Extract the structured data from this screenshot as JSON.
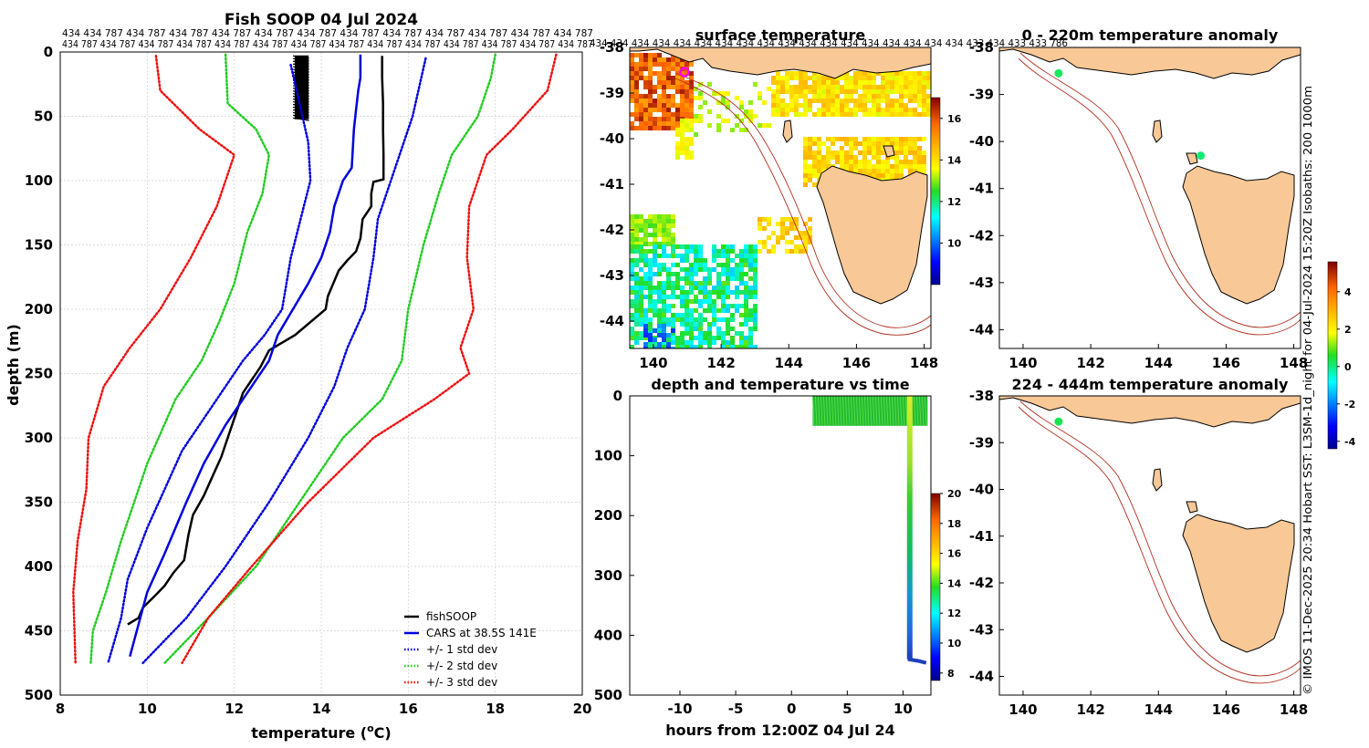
{
  "colors": {
    "fish": "#000000",
    "cars": "#0000dd",
    "std1": "#0000dd",
    "std2": "#22cc22",
    "std3": "#ee1111",
    "land": "#f8c897",
    "isobath": "#b03020",
    "grid": "#d0d0d0"
  },
  "footer_text": "© IMOS 11-Dec-2025 20:34 Hobart SST: L3SM-1d_night for 04-Jul-2024 15:20Z Isobaths: 200  1000m",
  "chart_data": [
    {
      "id": "profile",
      "type": "line",
      "title": "Fish SOOP 04 Jul 2024",
      "xlabel": "temperature (oC)",
      "xlabel_main": "temperature (",
      "xlabel_sup": "o",
      "xlabel_end": "C)",
      "ylabel": "depth (m)",
      "xlim": [
        8,
        20
      ],
      "ylim": [
        500,
        0
      ],
      "xticks": [
        "8",
        "10",
        "12",
        "14",
        "16",
        "18",
        "20"
      ],
      "yticks": [
        "0",
        "50",
        "100",
        "150",
        "200",
        "250",
        "300",
        "350",
        "400",
        "450",
        "500"
      ],
      "grid": true,
      "legend_position": "bottom-right",
      "top_labels": {
        "row1": "434 434 787 434 787 434 787 434 787 434 787 434 787 434 787 434 787 434 787 434 787 434 787 434 787",
        "row2": "434 787 434 787 434 787 434 787 434 787 434 787 434 787 434 787 434 787 434 787 434 787 434 787 434 787 434 787"
      },
      "series": [
        {
          "name": "fishSOOP",
          "style": "solid",
          "color": "#000000",
          "points": [
            [
              15.4,
              3
            ],
            [
              15.4,
              20
            ],
            [
              15.42,
              40
            ],
            [
              15.42,
              60
            ],
            [
              15.43,
              80
            ],
            [
              15.43,
              99
            ],
            [
              15.2,
              101
            ],
            [
              15.15,
              110
            ],
            [
              15.15,
              120
            ],
            [
              14.95,
              130
            ],
            [
              14.9,
              145
            ],
            [
              14.8,
              155
            ],
            [
              14.6,
              162
            ],
            [
              14.4,
              170
            ],
            [
              14.15,
              190
            ],
            [
              14.1,
              200
            ],
            [
              13.4,
              220
            ],
            [
              12.8,
              232
            ],
            [
              12.6,
              245
            ],
            [
              12.4,
              255
            ],
            [
              12.2,
              265
            ],
            [
              12.05,
              280
            ],
            [
              11.85,
              300
            ],
            [
              11.7,
              315
            ],
            [
              11.5,
              330
            ],
            [
              11.3,
              345
            ],
            [
              11.05,
              360
            ],
            [
              10.95,
              375
            ],
            [
              10.85,
              395
            ],
            [
              10.6,
              405
            ],
            [
              10.4,
              415
            ],
            [
              10.2,
              422
            ],
            [
              9.9,
              432
            ],
            [
              9.8,
              440
            ],
            [
              9.55,
              445
            ]
          ]
        },
        {
          "name": "surface_dive",
          "style": "blob",
          "color": "#000000",
          "points": [
            [
              13.4,
              3
            ],
            [
              13.7,
              3
            ],
            [
              13.7,
              52
            ],
            [
              13.4,
              52
            ]
          ]
        },
        {
          "name": "CARS at 38.5S 141E",
          "style": "solid",
          "color": "#0000dd",
          "points": [
            [
              14.9,
              2
            ],
            [
              14.9,
              20
            ],
            [
              14.85,
              30
            ],
            [
              14.8,
              45
            ],
            [
              14.75,
              60
            ],
            [
              14.7,
              90
            ],
            [
              14.5,
              100
            ],
            [
              14.3,
              120
            ],
            [
              14.2,
              140
            ],
            [
              14.0,
              160
            ],
            [
              13.7,
              180
            ],
            [
              13.35,
              200
            ],
            [
              13.0,
              220
            ],
            [
              12.8,
              240
            ],
            [
              12.5,
              255
            ],
            [
              12.2,
              270
            ],
            [
              11.8,
              290
            ],
            [
              11.3,
              320
            ],
            [
              10.9,
              350
            ],
            [
              10.4,
              390
            ],
            [
              10.0,
              420
            ],
            [
              9.6,
              470
            ]
          ]
        },
        {
          "name": "+/- 1 std dev",
          "style": "dotted",
          "color": "#0000dd",
          "points": [
            [
              13.3,
              10
            ],
            [
              13.5,
              40
            ],
            [
              13.7,
              70
            ],
            [
              13.75,
              100
            ],
            [
              13.6,
              120
            ],
            [
              13.3,
              160
            ],
            [
              13.1,
              200
            ],
            [
              12.7,
              220
            ],
            [
              12.2,
              240
            ],
            [
              11.6,
              270
            ],
            [
              10.8,
              310
            ],
            [
              10.0,
              370
            ],
            [
              9.55,
              410
            ],
            [
              9.4,
              440
            ],
            [
              9.1,
              475
            ]
          ]
        },
        {
          "name": "+/- 1 std dev upper",
          "style": "dotted",
          "color": "#0000dd",
          "points": [
            [
              16.4,
              5
            ],
            [
              16.3,
              20
            ],
            [
              16.1,
              50
            ],
            [
              15.8,
              80
            ],
            [
              15.6,
              100
            ],
            [
              15.3,
              130
            ],
            [
              15.2,
              160
            ],
            [
              15.0,
              200
            ],
            [
              14.6,
              230
            ],
            [
              14.3,
              260
            ],
            [
              13.7,
              300
            ],
            [
              12.8,
              350
            ],
            [
              11.8,
              400
            ],
            [
              10.9,
              440
            ],
            [
              9.9,
              475
            ]
          ]
        },
        {
          "name": "+/- 2 std dev",
          "style": "dotted",
          "color": "#22cc22",
          "points": [
            [
              11.8,
              2
            ],
            [
              11.85,
              40
            ],
            [
              12.5,
              60
            ],
            [
              12.8,
              80
            ],
            [
              12.65,
              110
            ],
            [
              12.3,
              140
            ],
            [
              12.0,
              180
            ],
            [
              11.65,
              210
            ],
            [
              11.25,
              240
            ],
            [
              10.65,
              270
            ],
            [
              10.0,
              320
            ],
            [
              9.4,
              380
            ],
            [
              9.05,
              420
            ],
            [
              8.75,
              450
            ],
            [
              8.7,
              475
            ]
          ]
        },
        {
          "name": "+/- 2 std dev upper",
          "style": "dotted",
          "color": "#22cc22",
          "points": [
            [
              18.0,
              2
            ],
            [
              17.9,
              20
            ],
            [
              17.6,
              50
            ],
            [
              17.0,
              80
            ],
            [
              16.7,
              110
            ],
            [
              16.35,
              150
            ],
            [
              16.0,
              200
            ],
            [
              15.85,
              240
            ],
            [
              15.4,
              270
            ],
            [
              14.5,
              300
            ],
            [
              13.5,
              350
            ],
            [
              12.5,
              400
            ],
            [
              11.4,
              440
            ],
            [
              10.4,
              475
            ]
          ]
        },
        {
          "name": "+/- 3 std dev",
          "style": "dotted",
          "color": "#ee1111",
          "points": [
            [
              10.2,
              3
            ],
            [
              10.3,
              30
            ],
            [
              11.2,
              60
            ],
            [
              12.0,
              80
            ],
            [
              11.6,
              120
            ],
            [
              11.0,
              160
            ],
            [
              10.3,
              200
            ],
            [
              9.6,
              230
            ],
            [
              9.0,
              260
            ],
            [
              8.65,
              300
            ],
            [
              8.6,
              340
            ],
            [
              8.4,
              380
            ],
            [
              8.3,
              420
            ],
            [
              8.35,
              475
            ]
          ]
        },
        {
          "name": "+/- 3 std dev upper",
          "style": "dotted",
          "color": "#ee1111",
          "points": [
            [
              19.4,
              2
            ],
            [
              19.2,
              30
            ],
            [
              18.4,
              60
            ],
            [
              17.8,
              80
            ],
            [
              17.4,
              120
            ],
            [
              17.35,
              160
            ],
            [
              17.5,
              200
            ],
            [
              17.2,
              230
            ],
            [
              17.4,
              250
            ],
            [
              16.6,
              270
            ],
            [
              15.2,
              300
            ],
            [
              13.7,
              350
            ],
            [
              12.4,
              400
            ],
            [
              11.4,
              440
            ],
            [
              10.8,
              475
            ]
          ]
        }
      ],
      "legend": [
        {
          "label": "fishSOOP",
          "color": "#000000",
          "style": "solid"
        },
        {
          "label": "CARS at 38.5S 141E",
          "color": "#0000dd",
          "style": "solid"
        },
        {
          "label": "+/- 1 std dev",
          "color": "#0000dd",
          "style": "dotted"
        },
        {
          "label": "+/- 2 std dev",
          "color": "#22cc22",
          "style": "dotted"
        },
        {
          "label": "+/- 3 std dev",
          "color": "#ee1111",
          "style": "dotted"
        }
      ]
    },
    {
      "id": "surface_map",
      "type": "heatmap",
      "title": "surface temperature",
      "top_labels": "434 434 434 434 434 434 434 434 434 434 434 434 434 434 434 434 434 434 433 434 433 433 786",
      "xlim": [
        139.3,
        148.2
      ],
      "ylim": [
        -44.6,
        -38
      ],
      "xticks": [
        "140",
        "142",
        "144",
        "146",
        "148"
      ],
      "yticks": [
        "-38",
        "-39",
        "-40",
        "-41",
        "-42",
        "-43",
        "-44"
      ],
      "colorbar": {
        "range": [
          8,
          17
        ],
        "ticks": [
          "10",
          "12",
          "14",
          "16"
        ]
      },
      "marker": {
        "lon": 141.0,
        "lat": -38.55,
        "label": "fishing location"
      }
    },
    {
      "id": "anomaly_0_220",
      "type": "heatmap",
      "title": "0 - 220m temperature anomaly",
      "xlim": [
        139.3,
        148.2
      ],
      "ylim": [
        -44.4,
        -38
      ],
      "xticks": [
        "140",
        "142",
        "144",
        "146",
        "148"
      ],
      "yticks": [
        "-38",
        "-39",
        "-40",
        "-41",
        "-42",
        "-43",
        "-44"
      ],
      "points": [
        {
          "lon": 141.05,
          "lat": -38.55,
          "anom": 0.2
        },
        {
          "lon": 145.25,
          "lat": -40.3,
          "anom": 0.1
        }
      ]
    },
    {
      "id": "anomaly_224_444",
      "type": "heatmap",
      "title": "224 - 444m temperature anomaly",
      "xlim": [
        139.3,
        148.2
      ],
      "ylim": [
        -44.4,
        -38
      ],
      "xticks": [
        "140",
        "142",
        "144",
        "146",
        "148"
      ],
      "yticks": [
        "-38",
        "-39",
        "-40",
        "-41",
        "-42",
        "-43",
        "-44"
      ],
      "points": [
        {
          "lon": 141.05,
          "lat": -38.55,
          "anom": 0.3
        }
      ],
      "colorbar": {
        "range": [
          -4.4,
          5.6
        ],
        "ticks": [
          "4",
          "2",
          "0",
          "-2",
          "-4"
        ]
      }
    },
    {
      "id": "depth_time",
      "type": "scatter",
      "title": "depth and temperature vs time",
      "xlabel": "hours from 12:00Z 04 Jul 24",
      "xlim": [
        -14.5,
        12.5
      ],
      "ylim": [
        500,
        0
      ],
      "xticks": [
        "-10",
        "-5",
        "0",
        "5",
        "10"
      ],
      "yticks": [
        "0",
        "100",
        "200",
        "300",
        "400",
        "500"
      ],
      "surface_block": {
        "t_start": 1.9,
        "t_end": 12.2,
        "depth_top": 0,
        "depth_bottom": 50
      },
      "dive": {
        "t": 10.6,
        "depth_top": 0,
        "depth_bottom": 440,
        "temp_top": 15.4,
        "temp_bottom": 9.6
      },
      "colorbar": {
        "range": [
          7.5,
          20
        ],
        "ticks": [
          "8",
          "10",
          "12",
          "14",
          "16",
          "18",
          "20"
        ]
      }
    }
  ]
}
